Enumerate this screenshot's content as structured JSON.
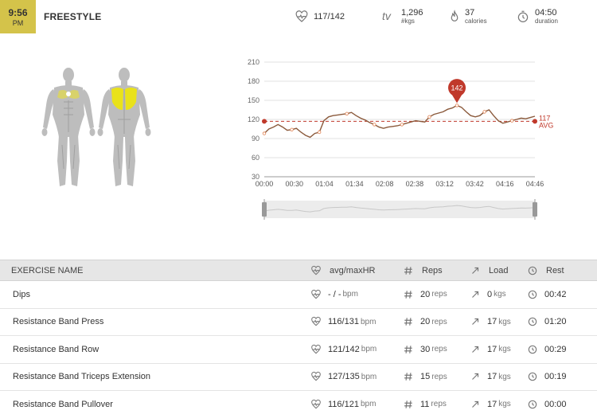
{
  "header": {
    "time": "9:56",
    "ampm": "PM",
    "title": "FREESTYLE",
    "heart_rate": {
      "value": "117/142",
      "icon": "heart-rate-icon"
    },
    "volume": {
      "label": "tv",
      "value": "1,296",
      "unit": "#kgs"
    },
    "calories": {
      "value": "37",
      "unit": "calories",
      "icon": "flame-icon"
    },
    "duration": {
      "value": "04:50",
      "unit": "duration",
      "icon": "stopwatch-icon"
    }
  },
  "colors": {
    "accent": "#d4c34a",
    "muscle_highlight": "#e9e21a",
    "hr_line": "#8b5a3c",
    "avg_line": "#c0392b",
    "marker": "#c0392b"
  },
  "chart_data": {
    "type": "line",
    "yticks": [
      210,
      180,
      150,
      120,
      90,
      60,
      30
    ],
    "ylim": [
      30,
      210
    ],
    "xticks": [
      "00:00",
      "00:30",
      "01:04",
      "01:34",
      "02:08",
      "02:38",
      "03:12",
      "03:42",
      "04:16",
      "04:46"
    ],
    "series": [
      {
        "values": [
          98,
          105,
          108,
          112,
          108,
          103,
          104,
          106,
          100,
          95,
          92,
          98,
          100,
          118,
          124,
          126,
          127,
          128,
          129,
          131,
          126,
          122,
          119,
          115,
          112,
          108,
          106,
          108,
          109,
          110,
          112,
          114,
          116,
          118,
          117,
          116,
          124,
          128,
          130,
          132,
          136,
          138,
          142,
          139,
          132,
          126,
          124,
          126,
          132,
          135,
          126,
          118,
          114,
          116,
          118,
          120,
          122,
          121,
          123,
          125
        ]
      }
    ],
    "avg": 117,
    "avg_label": "AVG",
    "max": 142
  },
  "table": {
    "headers": {
      "name": "EXERCISE NAME",
      "hr": "avg/maxHR",
      "reps": "Reps",
      "load": "Load",
      "rest": "Rest"
    },
    "rows": [
      {
        "name": "Dips",
        "hr": "- / -",
        "hr_unit": "bpm",
        "reps": "20",
        "reps_unit": "reps",
        "load": "0",
        "load_unit": "kgs",
        "rest": "00:42"
      },
      {
        "name": "Resistance Band Press",
        "hr": "116/131",
        "hr_unit": "bpm",
        "reps": "20",
        "reps_unit": "reps",
        "load": "17",
        "load_unit": "kgs",
        "rest": "01:20"
      },
      {
        "name": "Resistance Band Row",
        "hr": "121/142",
        "hr_unit": "bpm",
        "reps": "30",
        "reps_unit": "reps",
        "load": "17",
        "load_unit": "kgs",
        "rest": "00:29"
      },
      {
        "name": "Resistance Band Triceps Extension",
        "hr": "127/135",
        "hr_unit": "bpm",
        "reps": "15",
        "reps_unit": "reps",
        "load": "17",
        "load_unit": "kgs",
        "rest": "00:19"
      },
      {
        "name": "Resistance Band Pullover",
        "hr": "116/121",
        "hr_unit": "bpm",
        "reps": "11",
        "reps_unit": "reps",
        "load": "17",
        "load_unit": "kgs",
        "rest": "00:00"
      }
    ]
  }
}
